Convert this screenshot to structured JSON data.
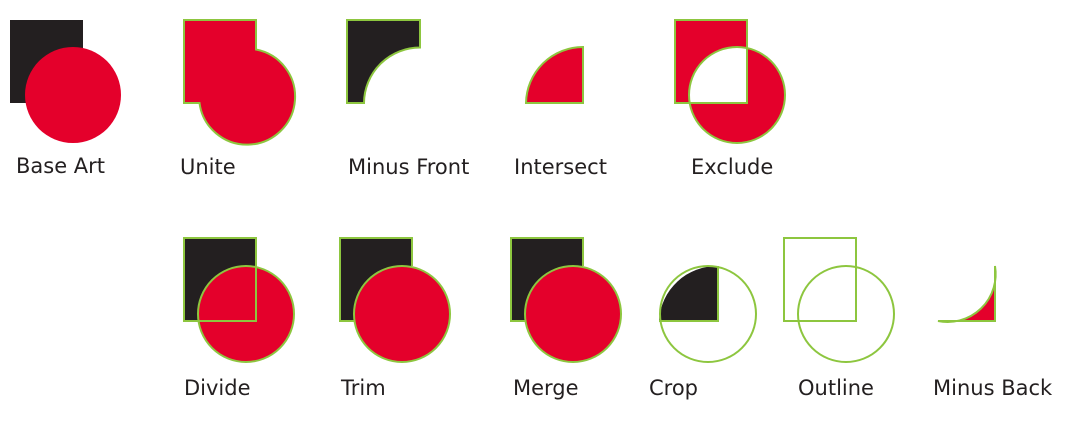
{
  "colors": {
    "dark_square": "#231f20",
    "red_fill": "#e4002b",
    "green_stroke": "#8dc63f",
    "label_text": "#231f20",
    "background": "#ffffff"
  },
  "examples": {
    "base_art": "Base Art",
    "unite": "Unite",
    "minus_front": "Minus Front",
    "intersect": "Intersect",
    "exclude": "Exclude",
    "divide": "Divide",
    "trim": "Trim",
    "merge": "Merge",
    "crop": "Crop",
    "outline": "Outline",
    "minus_back": "Minus Back"
  }
}
